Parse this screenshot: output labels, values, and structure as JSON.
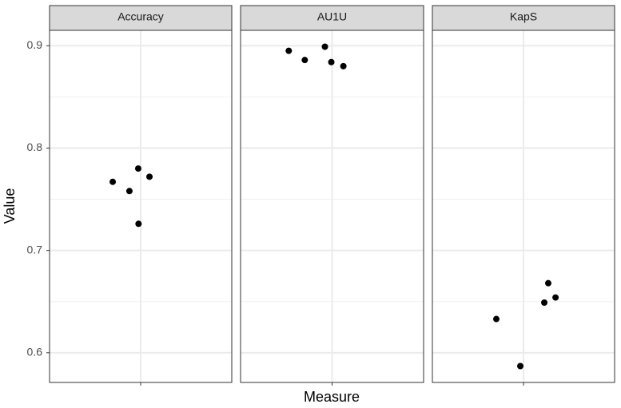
{
  "chart_data": {
    "type": "scatter",
    "xlabel": "Measure",
    "ylabel": "Value",
    "ylim": [
      0.571,
      0.915
    ],
    "yticks": [
      0.6,
      0.7,
      0.8,
      0.9
    ],
    "minor_yticks": [
      0.65,
      0.75,
      0.85
    ],
    "xlim": [
      0.4,
      1.6
    ],
    "xticks": [
      1
    ],
    "grid": true,
    "color": "#000000",
    "facets": [
      {
        "title": "Accuracy",
        "x": [
          0.816,
          0.926,
          0.984,
          1.058,
          0.986
        ],
        "values": [
          0.767,
          0.758,
          0.78,
          0.772,
          0.726
        ]
      },
      {
        "title": "AU1U",
        "x": [
          0.716,
          0.821,
          0.953,
          0.995,
          1.074
        ],
        "values": [
          0.895,
          0.886,
          0.899,
          0.884,
          0.88
        ]
      },
      {
        "title": "KapS",
        "x": [
          0.821,
          0.979,
          1.137,
          1.163,
          1.211
        ],
        "values": [
          0.633,
          0.587,
          0.649,
          0.668,
          0.654
        ]
      }
    ]
  }
}
